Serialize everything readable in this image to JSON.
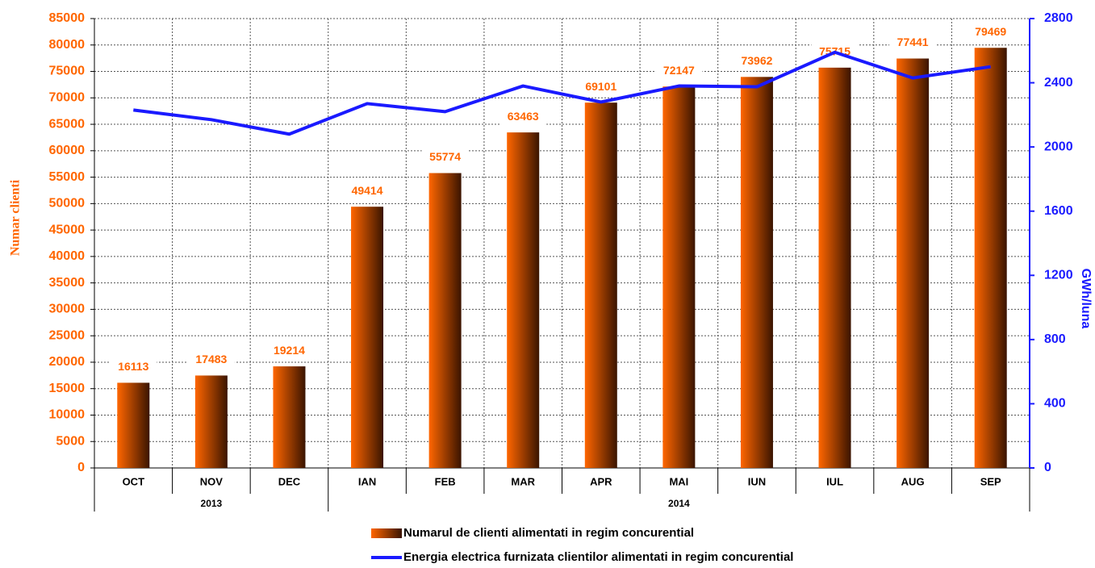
{
  "chart_data": {
    "type": "bar",
    "categories": [
      "OCT",
      "NOV",
      "DEC",
      "IAN",
      "FEB",
      "MAR",
      "APR",
      "MAI",
      "IUN",
      "IUL",
      "AUG",
      "SEP"
    ],
    "x_groups": [
      {
        "label": "2013",
        "count": 3
      },
      {
        "label": "2014",
        "count": 9
      }
    ],
    "y_label": "Numar clienti",
    "y2_label": "GWh/luna",
    "ylim": [
      0,
      85000
    ],
    "yticks": [
      0,
      5000,
      10000,
      15000,
      20000,
      25000,
      30000,
      35000,
      40000,
      45000,
      50000,
      55000,
      60000,
      65000,
      70000,
      75000,
      80000,
      85000
    ],
    "y2lim": [
      0,
      2800
    ],
    "y2ticks": [
      0,
      400,
      800,
      1200,
      1600,
      2000,
      2400,
      2800
    ],
    "grid": true,
    "legend": "bottom",
    "series": [
      {
        "name": "Numarul de clienti alimentati in regim concurential",
        "type": "bar",
        "color": "#ff6600",
        "gradient_to": "#3a1400",
        "values": [
          16113,
          17483,
          19214,
          49414,
          55774,
          63463,
          69101,
          72147,
          73962,
          75715,
          77441,
          79469
        ]
      },
      {
        "name": "Energia electrica furnizata clientilor alimentati in regim concurential",
        "type": "line",
        "axis": "y2",
        "color": "#1a1aff",
        "values": [
          2230,
          2170,
          2080,
          2270,
          2220,
          2380,
          2280,
          2380,
          2375,
          2590,
          2430,
          2500
        ]
      }
    ]
  }
}
